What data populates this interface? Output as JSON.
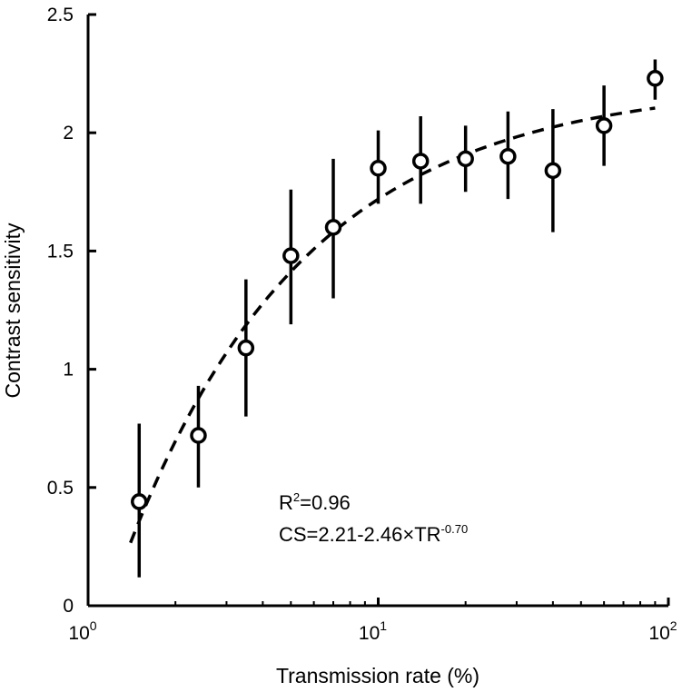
{
  "chart_data": {
    "type": "scatter",
    "xscale": "log",
    "xlim": [
      1,
      100
    ],
    "ylim": [
      0,
      2.5
    ],
    "xlabel": "Transmission rate (%)",
    "ylabel": "Contrast sensitivity",
    "x_ticks": [
      {
        "value": 1,
        "base": "10",
        "exp": "0"
      },
      {
        "value": 10,
        "base": "10",
        "exp": "1"
      },
      {
        "value": 100,
        "base": "10",
        "exp": "2"
      }
    ],
    "y_ticks": [
      {
        "value": 0,
        "label": "0"
      },
      {
        "value": 0.5,
        "label": "0.5"
      },
      {
        "value": 1,
        "label": "1"
      },
      {
        "value": 1.5,
        "label": "1.5"
      },
      {
        "value": 2,
        "label": "2"
      },
      {
        "value": 2.5,
        "label": "2.5"
      }
    ],
    "grid": false,
    "points": [
      {
        "x": 1.5,
        "y": 0.44,
        "lo": 0.12,
        "hi": 0.77
      },
      {
        "x": 2.4,
        "y": 0.72,
        "lo": 0.5,
        "hi": 0.93
      },
      {
        "x": 3.5,
        "y": 1.09,
        "lo": 0.8,
        "hi": 1.38
      },
      {
        "x": 5,
        "y": 1.48,
        "lo": 1.19,
        "hi": 1.76
      },
      {
        "x": 7,
        "y": 1.6,
        "lo": 1.3,
        "hi": 1.89
      },
      {
        "x": 10,
        "y": 1.85,
        "lo": 1.7,
        "hi": 2.01
      },
      {
        "x": 14,
        "y": 1.88,
        "lo": 1.7,
        "hi": 2.07
      },
      {
        "x": 20,
        "y": 1.89,
        "lo": 1.75,
        "hi": 2.03
      },
      {
        "x": 28,
        "y": 1.9,
        "lo": 1.72,
        "hi": 2.09
      },
      {
        "x": 40,
        "y": 1.84,
        "lo": 1.58,
        "hi": 2.1
      },
      {
        "x": 60,
        "y": 2.03,
        "lo": 1.86,
        "hi": 2.2
      },
      {
        "x": 90,
        "y": 2.23,
        "lo": 2.14,
        "hi": 2.31
      }
    ],
    "fit": {
      "style": "dashed",
      "a": 2.21,
      "b": 2.46,
      "c": -0.7,
      "x_range": [
        1.4,
        90
      ]
    },
    "annotations": {
      "r2_label": "R",
      "r2_sup": "2",
      "r2_value": "=0.96",
      "eq_label": "CS=2.21-2.46×TR",
      "eq_sup": "-0.70"
    }
  }
}
